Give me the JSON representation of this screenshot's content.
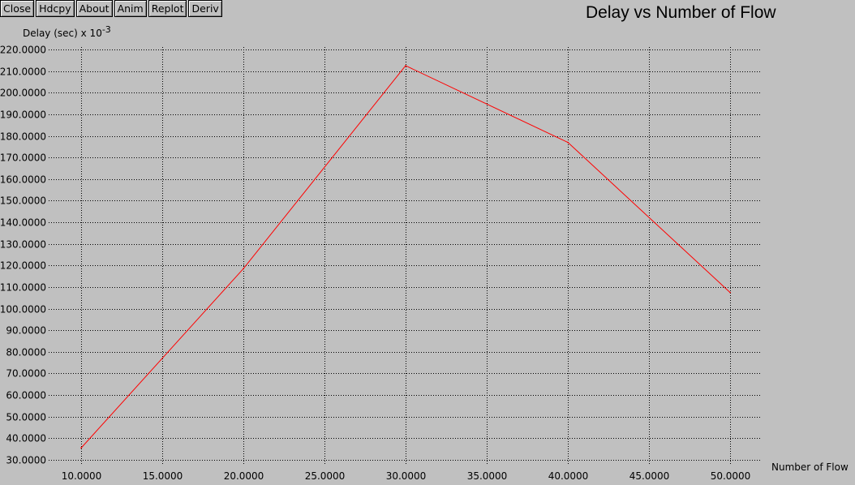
{
  "toolbar": {
    "buttons": [
      {
        "label": "Close"
      },
      {
        "label": "Hdcpy"
      },
      {
        "label": "About"
      },
      {
        "label": "Anim"
      },
      {
        "label": "Replot"
      },
      {
        "label": "Deriv"
      }
    ]
  },
  "chart_data": {
    "type": "line",
    "title": "Delay vs Number of Flow",
    "ylabel": "Delay (sec) x 10",
    "ylabel_exponent": "-3",
    "xlabel": "Number of Flow",
    "xlim": [
      10,
      50
    ],
    "ylim": [
      30,
      220
    ],
    "x_ticks": [
      "10.0000",
      "15.0000",
      "20.0000",
      "25.0000",
      "30.0000",
      "35.0000",
      "40.0000",
      "45.0000",
      "50.0000"
    ],
    "y_ticks": [
      "30.0000",
      "40.0000",
      "50.0000",
      "60.0000",
      "70.0000",
      "80.0000",
      "90.0000",
      "100.0000",
      "110.0000",
      "120.0000",
      "130.0000",
      "140.0000",
      "150.0000",
      "160.0000",
      "170.0000",
      "180.0000",
      "190.0000",
      "200.0000",
      "210.0000",
      "220.0000"
    ],
    "grid": true,
    "series": [
      {
        "color": "#ff0000",
        "x": [
          10,
          20,
          30,
          40,
          50
        ],
        "y": [
          35.5,
          118.5,
          212.5,
          177,
          107.5
        ]
      }
    ]
  }
}
